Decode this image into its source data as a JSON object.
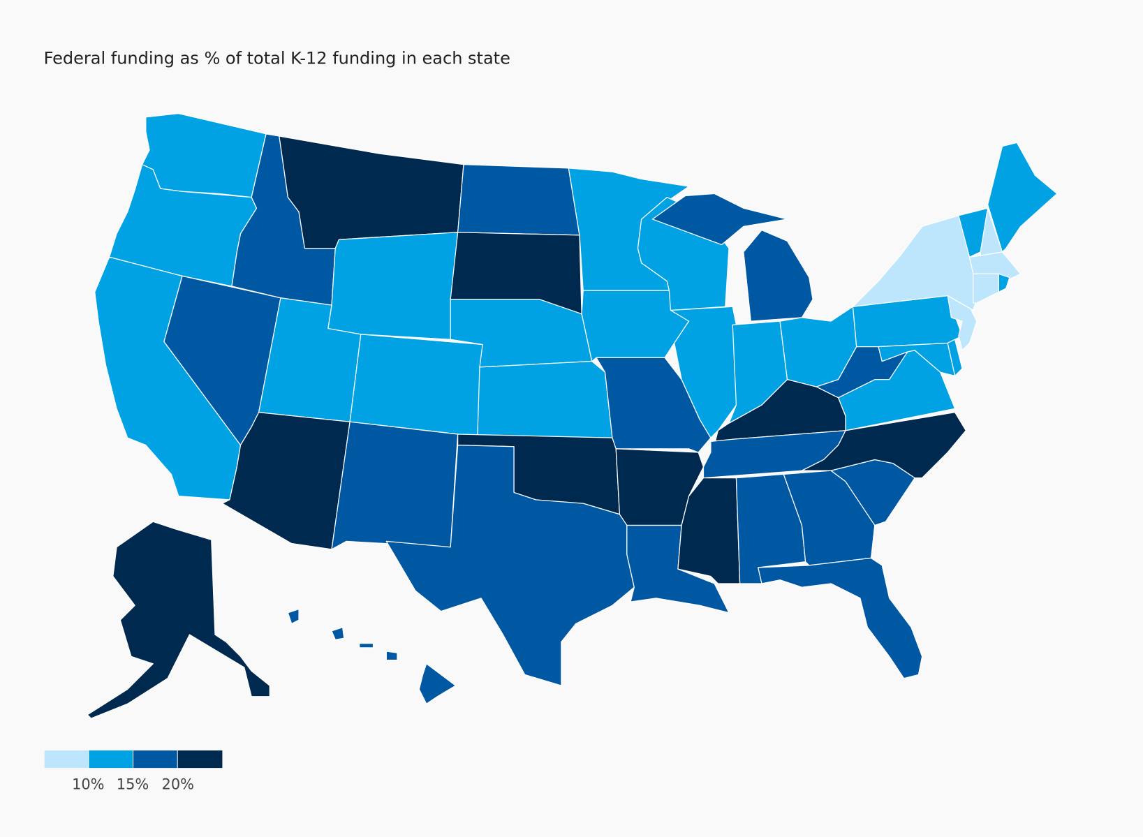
{
  "title": "Federal funding as % of total K-12 funding in each state",
  "colors": [
    "#bde6fd",
    "#00a2e3",
    "#0058a3",
    "#00294f"
  ],
  "legend": {
    "labels": [
      "10%",
      "15%",
      "20%"
    ]
  },
  "chart_data": {
    "type": "choropleth",
    "title": "Federal funding as % of total K-12 funding in each state",
    "bins": [
      "<10%",
      "10-15%",
      "15-20%",
      ">20%"
    ],
    "state_class": {
      "WA": 1,
      "OR": 1,
      "CA": 1,
      "NV": 2,
      "ID": 2,
      "MT": 3,
      "WY": 1,
      "UT": 1,
      "CO": 1,
      "AZ": 3,
      "NM": 2,
      "ND": 2,
      "SD": 3,
      "NE": 1,
      "KS": 1,
      "OK": 3,
      "TX": 2,
      "MN": 1,
      "IA": 1,
      "MO": 2,
      "AR": 3,
      "LA": 2,
      "WI": 1,
      "IL": 1,
      "MI": 2,
      "IN": 1,
      "OH": 1,
      "KY": 3,
      "TN": 2,
      "MS": 3,
      "AL": 2,
      "GA": 2,
      "FL": 2,
      "SC": 2,
      "NC": 3,
      "VA": 1,
      "WV": 2,
      "PA": 1,
      "MD": 1,
      "DE": 1,
      "NJ": 0,
      "NY": 0,
      "VT": 1,
      "NH": 0,
      "ME": 1,
      "MA": 0,
      "CT": 0,
      "RI": 1,
      "AK": 3,
      "HI": 2
    }
  }
}
